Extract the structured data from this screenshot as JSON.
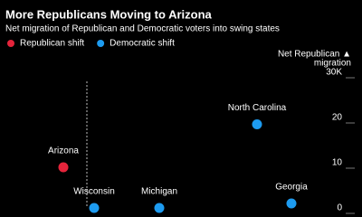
{
  "chart_data": {
    "type": "scatter",
    "title": "More Republicans Moving to Arizona",
    "subtitle": "Net migration of Republican and Democratic voters into swing states",
    "y_label": [
      "Net Republican ▲",
      "migration"
    ],
    "ylim": [
      0,
      30
    ],
    "yticks": [
      0,
      10,
      20,
      {
        "value": 30,
        "label": "30K"
      }
    ],
    "xlim": [
      0,
      100
    ],
    "series": [
      {
        "name": "Republican shift",
        "color": "#e5243b",
        "labels": [
          "Arizona"
        ],
        "x": [
          17.5
        ],
        "values": [
          9
        ]
      },
      {
        "name": "Democratic shift",
        "color": "#1d9bf0",
        "labels": [
          "North Carolina",
          "Wisconsin",
          "Michigan",
          "Georgia"
        ],
        "x": [
          71,
          26,
          44,
          80.5
        ],
        "values": [
          18.5,
          0,
          0,
          1
        ]
      }
    ]
  }
}
